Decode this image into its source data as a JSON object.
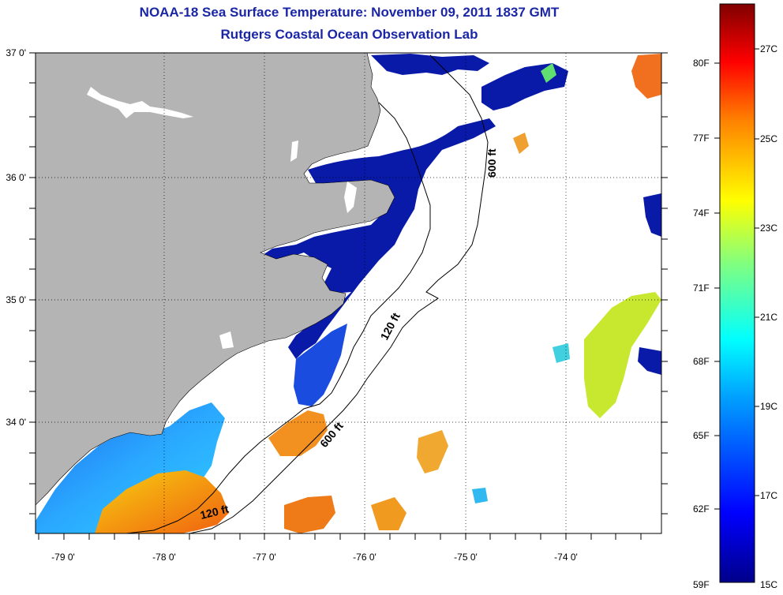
{
  "title_line1": "NOAA-18 Sea Surface Temperature:  November 09, 2011 1837 GMT",
  "title_line2": "Rutgers Coastal Ocean Observation Lab",
  "lon_labels": [
    "-79 0'",
    "-78 0'",
    "-77 0'",
    "-76 0'",
    "-75 0'",
    "-74 0'"
  ],
  "lat_labels": [
    "37 0'",
    "36 0'",
    "35 0'",
    "34 0'"
  ],
  "contour_labels": [
    "600 ft",
    "120 ft",
    "600 ft",
    "120 ft"
  ],
  "colorbar": {
    "fahrenheit_labels": [
      "80F",
      "77F",
      "74F",
      "71F",
      "68F",
      "65F",
      "62F",
      "59F"
    ],
    "celsius_labels": [
      "27C",
      "25C",
      "23C",
      "21C",
      "19C",
      "17C",
      "15C"
    ]
  },
  "colors": {
    "land": "#b4b4b4",
    "title": "#1a26a6",
    "cold": "#0a1aa8",
    "warm": "#f08a10"
  }
}
